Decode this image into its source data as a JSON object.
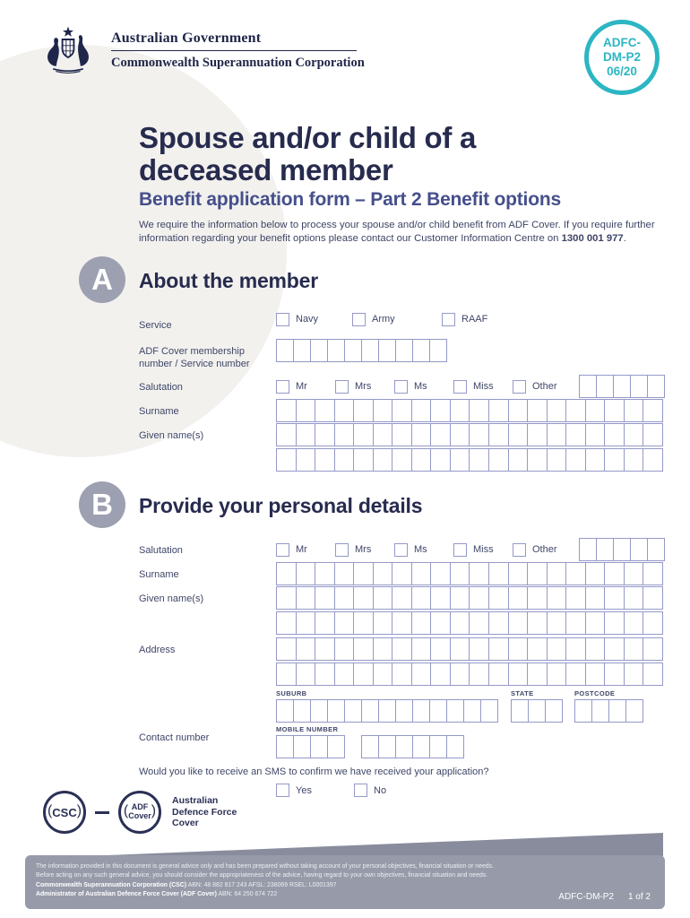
{
  "colors": {
    "brand_navy": "#272b4e",
    "heading_blue": "#454f8b",
    "teal_accent": "#2cb6c3",
    "cell_border": "#9599c8",
    "footer_gray": "#979ba9"
  },
  "header": {
    "gov_title": "Australian Government",
    "org_title": "Commonwealth Superannuation Corporation"
  },
  "badge": {
    "line1": "ADFC-",
    "line2": "DM-P2",
    "line3": "06/20"
  },
  "title": {
    "line1": "Spouse and/or child of a",
    "line2": "deceased member"
  },
  "subtitle": "Benefit application form – Part 2 Benefit options",
  "intro": {
    "before": "We require the information below to process your spouse and/or child benefit from ADF Cover. If you require further information regarding your benefit options please contact our Customer Information Centre on ",
    "phone": "1300 001 977",
    "after": "."
  },
  "section_a": {
    "letter": "A",
    "heading": "About the member",
    "service_label": "Service",
    "service_options": [
      "Navy",
      "Army",
      "RAAF"
    ],
    "membership_label": "ADF Cover membership number / Service number",
    "salutation_label": "Salutation",
    "salutation_options": [
      "Mr",
      "Mrs",
      "Ms",
      "Miss",
      "Other"
    ],
    "surname_label": "Surname",
    "given_label": "Given name(s)"
  },
  "section_b": {
    "letter": "B",
    "heading": "Provide your personal details",
    "salutation_label": "Salutation",
    "salutation_options": [
      "Mr",
      "Mrs",
      "Ms",
      "Miss",
      "Other"
    ],
    "surname_label": "Surname",
    "given_label": "Given name(s)",
    "address_label": "Address",
    "suburb_label": "SUBURB",
    "state_label": "STATE",
    "postcode_label": "POSTCODE",
    "contact_label": "Contact number",
    "mobile_label": "MOBILE NUMBER",
    "sms_question": "Would you like to receive an SMS to confirm we have received your application?",
    "sms_options": [
      "Yes",
      "No"
    ]
  },
  "logos": {
    "csc": "CSC",
    "adf_line1": "ADF",
    "adf_line2": "Cover",
    "brand_line1": "Australian",
    "brand_line2": "Defence Force",
    "brand_line3": "Cover"
  },
  "footer": {
    "disclaimer1": "The information provided in this document is general advice only and has been prepared without taking account of your personal objectives, financial situation or needs.",
    "disclaimer2": "Before acting on any such general advice, you should consider the appropriateness of the advice, having regard to your own objectives, financial situation and needs.",
    "entity1_bold": "Commonwealth Superannuation Corporation (CSC)",
    "entity1_rest": " ABN: 48 882 817 243 AFSL: 238069 RSEL: L0001397",
    "entity2_bold": "Administrator of Australian Defence Force Cover (ADF Cover)",
    "entity2_rest": " ABN: 64 250 674 722",
    "doc_code": "ADFC-DM-P2",
    "page_num": "1 of 2"
  }
}
